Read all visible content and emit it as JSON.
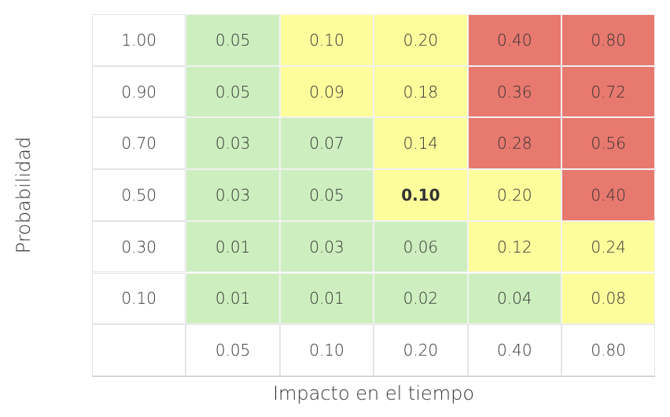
{
  "axis_labels": {
    "y": "Probabilidad",
    "x": "Impacto en el tiempo"
  },
  "table": {
    "column_labels": [
      "0.05",
      "0.10",
      "0.20",
      "0.40",
      "0.80"
    ],
    "rows": [
      {
        "label": "1.00",
        "cells": [
          "0.05",
          "0.10",
          "0.20",
          "0.40",
          "0.80"
        ],
        "colors": [
          "#cdefbf",
          "#fdfd9c",
          "#fdfd9c",
          "#e8796f",
          "#e8796f"
        ]
      },
      {
        "label": "0.90",
        "cells": [
          "0.05",
          "0.09",
          "0.18",
          "0.36",
          "0.72"
        ],
        "colors": [
          "#cdefbf",
          "#fdfd9c",
          "#fdfd9c",
          "#e8796f",
          "#e8796f"
        ]
      },
      {
        "label": "0.70",
        "cells": [
          "0.03",
          "0.07",
          "0.14",
          "0.28",
          "0.56"
        ],
        "colors": [
          "#cdefbf",
          "#cdefbf",
          "#fdfd9c",
          "#e8796f",
          "#e8796f"
        ]
      },
      {
        "label": "0.50",
        "cells": [
          "0.03",
          "0.05",
          "0.10",
          "0.20",
          "0.40"
        ],
        "colors": [
          "#cdefbf",
          "#cdefbf",
          "#fdfd9c",
          "#fdfd9c",
          "#e8796f"
        ]
      },
      {
        "label": "0.30",
        "cells": [
          "0.01",
          "0.03",
          "0.06",
          "0.12",
          "0.24"
        ],
        "colors": [
          "#cdefbf",
          "#cdefbf",
          "#cdefbf",
          "#fdfd9c",
          "#fdfd9c"
        ]
      },
      {
        "label": "0.10",
        "cells": [
          "0.01",
          "0.01",
          "0.02",
          "0.04",
          "0.08"
        ],
        "colors": [
          "#cdefbf",
          "#cdefbf",
          "#cdefbf",
          "#cdefbf",
          "#fdfd9c"
        ]
      }
    ],
    "bold_cell": {
      "row": 3,
      "col": 2
    }
  }
}
